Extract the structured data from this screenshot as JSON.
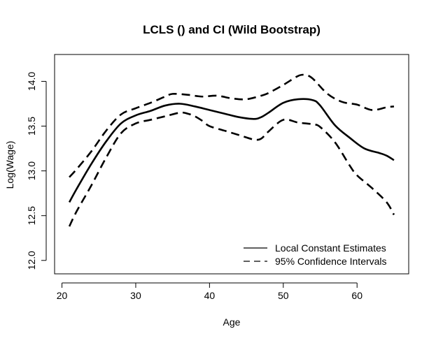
{
  "chart_data": {
    "type": "line",
    "title": "LCLS () and CI (Wild Bootstrap)",
    "xlabel": "Age",
    "ylabel": "Log(Wage)",
    "xlim": [
      19,
      67
    ],
    "ylim": [
      11.85,
      14.3
    ],
    "x_ticks": [
      20,
      30,
      40,
      50,
      60
    ],
    "y_ticks": [
      12.0,
      12.5,
      13.0,
      13.5,
      14.0
    ],
    "x_tick_labels": [
      "20",
      "30",
      "40",
      "50",
      "60"
    ],
    "y_tick_labels": [
      "12.0",
      "12.5",
      "13.0",
      "13.5",
      "14.0"
    ],
    "grid": false,
    "legend_position": "bottom-right",
    "legend": [
      {
        "label": "Local Constant Estimates",
        "style": "solid"
      },
      {
        "label": "95% Confidence Intervals",
        "style": "dashed"
      }
    ],
    "series": [
      {
        "name": "Local Constant Estimates",
        "style": "solid",
        "x": [
          21,
          22,
          24,
          26,
          28,
          30,
          32,
          34,
          36,
          38,
          40,
          42,
          44,
          46,
          47,
          48,
          50,
          52,
          54,
          55,
          57,
          59,
          61,
          63,
          64,
          65
        ],
        "values": [
          12.65,
          12.8,
          13.08,
          13.33,
          13.53,
          13.62,
          13.67,
          13.73,
          13.75,
          13.72,
          13.68,
          13.64,
          13.6,
          13.58,
          13.6,
          13.65,
          13.76,
          13.8,
          13.79,
          13.73,
          13.51,
          13.37,
          13.25,
          13.2,
          13.17,
          13.12
        ]
      },
      {
        "name": "95% Confidence Intervals",
        "style": "dashed",
        "x": [
          21,
          22,
          24,
          26,
          28,
          30,
          32,
          34,
          35,
          37,
          39,
          41,
          43,
          45,
          47,
          48,
          50,
          52,
          53,
          54,
          56,
          58,
          60,
          62,
          64,
          65
        ],
        "values": [
          12.93,
          13.02,
          13.22,
          13.45,
          13.63,
          13.7,
          13.76,
          13.83,
          13.86,
          13.85,
          13.83,
          13.84,
          13.81,
          13.8,
          13.84,
          13.87,
          13.96,
          14.06,
          14.07,
          14.03,
          13.86,
          13.77,
          13.74,
          13.68,
          13.71,
          13.72
        ]
      },
      {
        "name": "95% Confidence Intervals",
        "style": "dashed",
        "x": [
          21,
          22,
          24,
          26,
          28,
          30,
          32,
          34,
          36,
          37,
          38,
          39,
          40,
          42,
          44,
          46,
          47,
          48,
          50,
          52,
          54,
          55,
          57,
          59,
          60,
          62,
          64,
          65
        ],
        "values": [
          12.38,
          12.55,
          12.84,
          13.15,
          13.42,
          13.53,
          13.57,
          13.61,
          13.65,
          13.64,
          13.61,
          13.56,
          13.5,
          13.45,
          13.4,
          13.35,
          13.36,
          13.44,
          13.57,
          13.54,
          13.52,
          13.49,
          13.32,
          13.06,
          12.95,
          12.81,
          12.65,
          12.51
        ]
      }
    ]
  }
}
